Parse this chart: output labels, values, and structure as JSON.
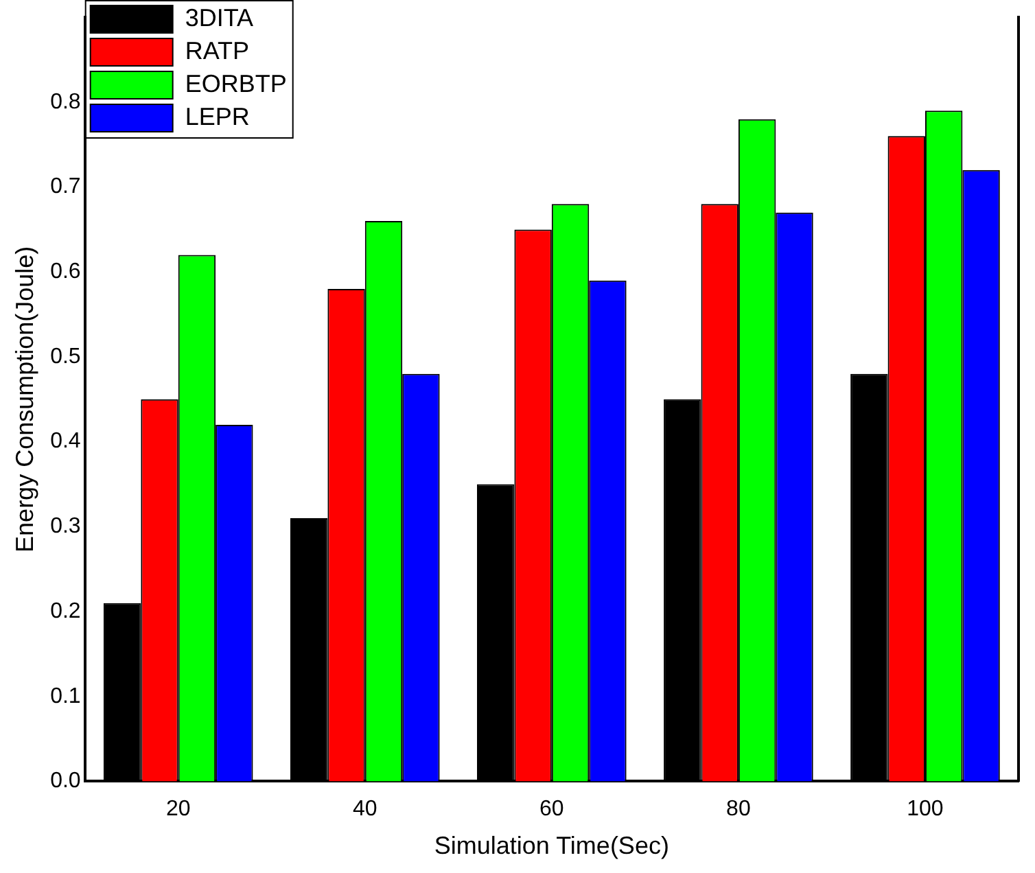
{
  "chart_data": {
    "type": "bar",
    "xlabel": "Simulation Time(Sec)",
    "ylabel": "Energy Consumption(Joule)",
    "categories": [
      "20",
      "40",
      "60",
      "80",
      "100"
    ],
    "series": [
      {
        "name": "3DITA",
        "color": "#000000",
        "values": [
          0.21,
          0.31,
          0.35,
          0.45,
          0.48
        ]
      },
      {
        "name": "RATP",
        "color": "#ff0000",
        "values": [
          0.45,
          0.58,
          0.65,
          0.68,
          0.76
        ]
      },
      {
        "name": "EORBTP",
        "color": "#00ff00",
        "values": [
          0.62,
          0.66,
          0.68,
          0.78,
          0.79
        ]
      },
      {
        "name": "LEPR",
        "color": "#0000ff",
        "values": [
          0.42,
          0.48,
          0.59,
          0.67,
          0.72
        ]
      }
    ],
    "ylim": [
      0,
      0.9
    ],
    "yticks": [
      {
        "value": 0,
        "label": "0.0"
      },
      {
        "value": 0.1,
        "label": "0.1"
      },
      {
        "value": 0.2,
        "label": "0.2"
      },
      {
        "value": 0.3,
        "label": "0.3"
      },
      {
        "value": 0.4,
        "label": "0.4"
      },
      {
        "value": 0.5,
        "label": "0.5"
      },
      {
        "value": 0.6,
        "label": "0.6"
      },
      {
        "value": 0.7,
        "label": "0.7"
      },
      {
        "value": 0.8,
        "label": "0.8"
      }
    ],
    "grid": false,
    "legend": "top left"
  }
}
